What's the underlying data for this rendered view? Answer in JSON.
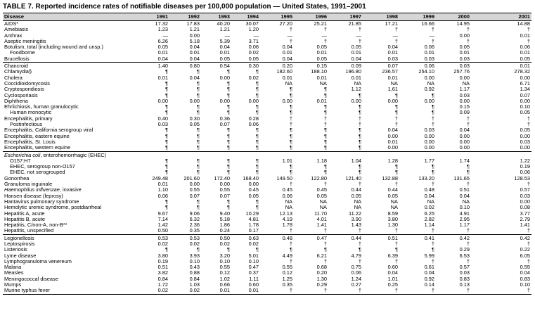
{
  "title": "TABLE 7. Reported incidence rates of notifiable diseases per 100,000 population — United States, 1991–2001",
  "table": {
    "columns": [
      "Disease",
      "1991",
      "1992",
      "1993",
      "1994",
      "1995",
      "1996",
      "1997",
      "1998",
      "1999",
      "2000",
      "2001"
    ],
    "groups": [
      {
        "rows": [
          {
            "disease": "AIDS*",
            "values": [
              "17.32",
              "17.83",
              "40.20",
              "30.07",
              "27.20",
              "25.21",
              "21.85",
              "17.21",
              "16.66",
              "14.95",
              "14.88"
            ]
          },
          {
            "disease": "Amebiasis",
            "values": [
              "1.23",
              "1.21",
              "1.21",
              "1.20",
              "†",
              "†",
              "†",
              "†",
              "†",
              "†",
              "†"
            ]
          },
          {
            "disease": "Anthrax",
            "values": [
              "—",
              "0.00",
              "—",
              "—",
              "—",
              "—",
              "—",
              "—",
              "—",
              "0.00",
              "0.01"
            ]
          },
          {
            "disease": "Aseptic meningitis",
            "values": [
              "6.26",
              "5.18",
              "5.39",
              "3.71",
              "†",
              "†",
              "†",
              "†",
              "†",
              "†",
              "†"
            ]
          },
          {
            "disease": "Botulism, total (including wound and unsp.)",
            "values": [
              "0.05",
              "0.04",
              "0.04",
              "0.06",
              "0.04",
              "0.05",
              "0.05",
              "0.04",
              "0.06",
              "0.05",
              "0.06"
            ]
          },
          {
            "disease": "Foodborne",
            "indent": true,
            "values": [
              "0.01",
              "0.01",
              "0.01",
              "0.02",
              "0.01",
              "0.01",
              "0.01",
              "0.01",
              "0.01",
              "0.01",
              "0.01"
            ]
          },
          {
            "disease": "Brucellosis",
            "values": [
              "0.04",
              "0.04",
              "0.05",
              "0.05",
              "0.04",
              "0.05",
              "0.04",
              "0.03",
              "0.03",
              "0.03",
              "0.05"
            ]
          }
        ]
      },
      {
        "rows": [
          {
            "disease": "Chancroid",
            "values": [
              "1.40",
              "0.80",
              "0.54",
              "0.30",
              "0.20",
              "0.15",
              "0.09",
              "0.07",
              "0.06",
              "0.03",
              "0.01"
            ]
          },
          {
            "disease": "Chlamydia§",
            "values": [
              "¶",
              "¶",
              "¶",
              "¶",
              "182.60",
              "188.10",
              "196.80",
              "236.57",
              "254.10",
              "257.76",
              "278.32"
            ]
          },
          {
            "disease": "Cholera",
            "values": [
              "0.01",
              "0.04",
              "0.00",
              "0.02",
              "0.01",
              "0.01",
              "0.01",
              "0.01",
              "0.00",
              "0.00",
              "0.00"
            ]
          },
          {
            "disease": "Coccidioidomycosis",
            "values": [
              "¶",
              "¶",
              "¶",
              "¶",
              "NA",
              "NA",
              "NA",
              "NA",
              "NA",
              "NA",
              "6.71"
            ]
          },
          {
            "disease": "Cryptosporidiosis",
            "values": [
              "¶",
              "¶",
              "¶",
              "¶",
              "¶",
              "¶",
              "1.12",
              "1.61",
              "0.92",
              "1.17",
              "1.34"
            ]
          },
          {
            "disease": "Cyclosporiasis",
            "values": [
              "¶",
              "¶",
              "¶",
              "¶",
              "¶",
              "¶",
              "¶",
              "¶",
              "¶",
              "0.03",
              "0.07"
            ]
          },
          {
            "disease": "Diphtheria",
            "values": [
              "0.00",
              "0.00",
              "0.00",
              "0.00",
              "0.00",
              "0.01",
              "0.00",
              "0.00",
              "0.00",
              "0.00",
              "0.00"
            ]
          },
          {
            "disease": "Ehrlichiosis, human granulocytic",
            "values": [
              "¶",
              "¶",
              "¶",
              "¶",
              "¶",
              "¶",
              "¶",
              "¶",
              "¶",
              "0.15",
              "0.10"
            ]
          },
          {
            "disease": "Human monocytic",
            "indent": true,
            "values": [
              "¶",
              "¶",
              "¶",
              "¶",
              "¶",
              "¶",
              "¶",
              "¶",
              "¶",
              "0.09",
              "0.05"
            ]
          },
          {
            "disease": "Encephalitis, primary",
            "values": [
              "0.40",
              "0.30",
              "0.36",
              "0.28",
              "†",
              "†",
              "†",
              "†",
              "†",
              "†",
              "†"
            ]
          },
          {
            "disease": "Postinfectious",
            "indent": true,
            "values": [
              "0.03",
              "0.05",
              "0.07",
              "0.06",
              "†",
              "†",
              "†",
              "†",
              "†",
              "†",
              "†"
            ]
          },
          {
            "disease": "Encephalitis, California serogroup viral",
            "values": [
              "¶",
              "¶",
              "¶",
              "¶",
              "¶",
              "¶",
              "¶",
              "0.04",
              "0.03",
              "0.04",
              "0.05"
            ]
          },
          {
            "disease": "Encephalitis, eastern equine",
            "values": [
              "¶",
              "¶",
              "¶",
              "¶",
              "¶",
              "¶",
              "¶",
              "0.00",
              "0.00",
              "0.00",
              "0.00"
            ]
          },
          {
            "disease": "Encephalitis, St. Louis",
            "values": [
              "¶",
              "¶",
              "¶",
              "¶",
              "¶",
              "¶",
              "¶",
              "0.01",
              "0.00",
              "0.00",
              "0.03"
            ]
          },
          {
            "disease": "Encephalitis, western equine",
            "values": [
              "¶",
              "¶",
              "¶",
              "¶",
              "¶",
              "¶",
              "¶",
              "0.00",
              "0.00",
              "0.00",
              "0.00"
            ]
          }
        ]
      },
      {
        "rows": [
          {
            "disease_italic": "Escherichia coli",
            "disease": ", enterohemorrhagic (EHEC)",
            "values": []
          },
          {
            "disease": "O157:H7",
            "indent": true,
            "values": [
              "¶",
              "¶",
              "¶",
              "¶",
              "1.01",
              "1.18",
              "1.04",
              "1.28",
              "1.77",
              "1.74",
              "1.22"
            ]
          },
          {
            "disease": "EHEC, serogroup non-O157",
            "indent": true,
            "values": [
              "¶",
              "¶",
              "¶",
              "¶",
              "¶",
              "¶",
              "¶",
              "¶",
              "¶",
              "¶",
              "0.19"
            ]
          },
          {
            "disease": "EHEC, not serogrouped",
            "indent": true,
            "values": [
              "¶",
              "¶",
              "¶",
              "¶",
              "¶",
              "¶",
              "¶",
              "¶",
              "¶",
              "¶",
              "0.06"
            ]
          },
          {
            "disease": "Gonorrhea",
            "values": [
              "249.48",
              "201.60",
              "172.40",
              "168.40",
              "149.50",
              "122.80",
              "121.40",
              "132.88",
              "133.20",
              "131.65",
              "128.53"
            ]
          },
          {
            "disease": "Granuloma inguinale",
            "values": [
              "0.01",
              "0.00",
              "0.00",
              "0.00",
              "†",
              "†",
              "†",
              "†",
              "†",
              "†",
              "†"
            ]
          },
          {
            "disease_italic": "Haemophilus influenzae",
            "disease": ", invasive",
            "values": [
              "1.10",
              "0.55",
              "0.55",
              "0.45",
              "0.45",
              "0.45",
              "0.44",
              "0.44",
              "0.48",
              "0.51",
              "0.57"
            ]
          },
          {
            "disease": "Hansen disease (leprosy)",
            "values": [
              "0.06",
              "0.07",
              "0.07",
              "0.05",
              "0.06",
              "0.05",
              "0.05",
              "0.05",
              "0.04",
              "0.04",
              "0.03"
            ]
          },
          {
            "disease": "Hantavirus pulmonary syndrome",
            "values": [
              "¶",
              "¶",
              "¶",
              "¶",
              "NA",
              "NA",
              "NA",
              "NA",
              "NA",
              "NA",
              "0.00"
            ]
          },
          {
            "disease": "Hemolytic uremic syndrome, postdiarrheal",
            "values": [
              "¶",
              "¶",
              "¶",
              "¶",
              "NA",
              "NA",
              "NA",
              "NA",
              "0.02",
              "0.10",
              "0.08"
            ]
          },
          {
            "disease": "Hepatitis A, acute",
            "values": [
              "9.67",
              "9.06",
              "9.40",
              "10.29",
              "12.13",
              "11.70",
              "11.22",
              "8.59",
              "6.25",
              "4.91",
              "3.77"
            ]
          },
          {
            "disease": "Hepatitis B, acute",
            "values": [
              "7.14",
              "6.32",
              "5.18",
              "4.81",
              "4.19",
              "4.01",
              "3.90",
              "3.80",
              "2.82",
              "2.95",
              "2.79"
            ]
          },
          {
            "disease": "Hepatitis, C/non-A, non-B**",
            "values": [
              "1.42",
              "2.36",
              "1.86",
              "1.78",
              "1.78",
              "1.41",
              "1.43",
              "1.30",
              "1.14",
              "1.17",
              "1.41"
            ]
          },
          {
            "disease": "Hepatitis, unspecified",
            "values": [
              "0.50",
              "0.35",
              "0.24",
              "0.17",
              "†",
              "†",
              "†",
              "†",
              "†",
              "†",
              "†"
            ]
          }
        ]
      },
      {
        "rows": [
          {
            "disease": "Legionellosis",
            "values": [
              "0.53",
              "0.53",
              "0.50",
              "0.63",
              "0.48",
              "0.47",
              "0.44",
              "0.51",
              "0.41",
              "0.42",
              "0.42"
            ]
          },
          {
            "disease": "Leptospirosis",
            "values": [
              "0.02",
              "0.02",
              "0.02",
              "0.02",
              "†",
              "†",
              "†",
              "†",
              "†",
              "†",
              "†"
            ]
          },
          {
            "disease": "Listeriosis",
            "values": [
              "¶",
              "¶",
              "¶",
              "¶",
              "¶",
              "¶",
              "¶",
              "¶",
              "¶",
              "0.29",
              "0.22"
            ]
          },
          {
            "disease": "Lyme disease",
            "values": [
              "3.80",
              "3.93",
              "3.20",
              "5.01",
              "4.49",
              "6.21",
              "4.79",
              "6.39",
              "5.99",
              "6.53",
              "6.05"
            ]
          },
          {
            "disease": "Lymphogranuloma venereum",
            "values": [
              "0.19",
              "0.10",
              "0.10",
              "0.10",
              "†",
              "†",
              "†",
              "†",
              "†",
              "†",
              "†"
            ]
          },
          {
            "disease": "Malaria",
            "values": [
              "0.51",
              "0.43",
              "0.55",
              "0.47",
              "0.55",
              "0.68",
              "0.75",
              "0.60",
              "0.61",
              "0.57",
              "0.55"
            ]
          },
          {
            "disease": "Measles",
            "values": [
              "3.82",
              "0.88",
              "0.12",
              "0.37",
              "0.12",
              "0.20",
              "0.06",
              "0.04",
              "0.04",
              "0.03",
              "0.04"
            ]
          },
          {
            "disease": "Meningococcal disease",
            "values": [
              "0.84",
              "0.84",
              "1.02",
              "1.11",
              "1.25",
              "1.30",
              "1.24",
              "1.01",
              "0.92",
              "0.83",
              "0.83"
            ]
          },
          {
            "disease": "Mumps",
            "values": [
              "1.72",
              "1.03",
              "0.66",
              "0.60",
              "0.35",
              "0.29",
              "0.27",
              "0.25",
              "0.14",
              "0.13",
              "0.10"
            ]
          },
          {
            "disease": "Murine typhus fever",
            "values": [
              "0.02",
              "0.02",
              "0.01",
              "0.01",
              "†",
              "†",
              "†",
              "†",
              "†",
              "†",
              "†"
            ]
          }
        ]
      }
    ]
  }
}
